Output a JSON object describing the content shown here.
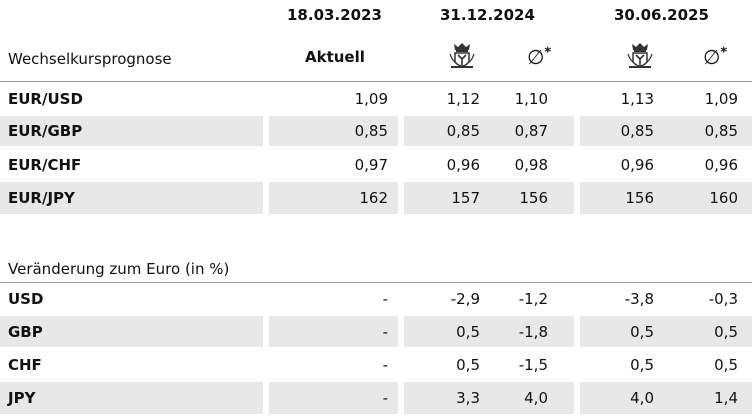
{
  "header": {
    "dates": [
      "18.03.2023",
      "31.12.2024",
      "30.06.2025"
    ],
    "title": "Wechselkursprognose",
    "current_label": "Aktuell",
    "avg_symbol": "∅",
    "avg_star": "*",
    "bank_icon": "coat-of-arms-icon"
  },
  "forecast_rows": [
    {
      "label": "EUR/USD",
      "values": [
        "1,09",
        "1,12",
        "1,10",
        "1,13",
        "1,09"
      ]
    },
    {
      "label": "EUR/GBP",
      "values": [
        "0,85",
        "0,85",
        "0,87",
        "0,85",
        "0,85"
      ]
    },
    {
      "label": "EUR/CHF",
      "values": [
        "0,97",
        "0,96",
        "0,98",
        "0,96",
        "0,96"
      ]
    },
    {
      "label": "EUR/JPY",
      "values": [
        "162",
        "157",
        "156",
        "156",
        "160"
      ]
    }
  ],
  "change_section": {
    "title": "Veränderung zum Euro (in %)"
  },
  "change_rows": [
    {
      "label": "USD",
      "values": [
        "-",
        "-2,9",
        "-1,2",
        "-3,8",
        "-0,3"
      ]
    },
    {
      "label": "GBP",
      "values": [
        "-",
        "0,5",
        "-1,8",
        "0,5",
        "0,5"
      ]
    },
    {
      "label": "CHF",
      "values": [
        "-",
        "0,5",
        "-1,5",
        "0,5",
        "0,5"
      ]
    },
    {
      "label": "JPY",
      "values": [
        "-",
        "3,3",
        "4,0",
        "4,0",
        "1,4"
      ]
    }
  ],
  "colors": {
    "shade": "#e8e8e8",
    "rule": "#9a9a9a",
    "text": "#111111"
  }
}
